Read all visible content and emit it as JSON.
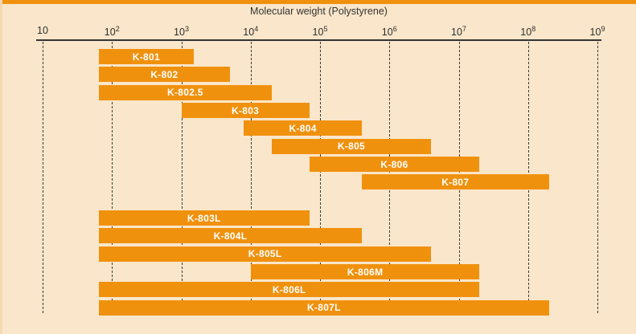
{
  "chart_data": {
    "type": "bar",
    "variant": "horizontal-log-range",
    "title": "Molecular weight (Polystyrene)",
    "x_axis": {
      "scale": "log10",
      "min_exponent": 1,
      "max_exponent": 9,
      "ticks": [
        {
          "base": "10",
          "exp": ""
        },
        {
          "base": "10",
          "exp": "2"
        },
        {
          "base": "10",
          "exp": "3"
        },
        {
          "base": "10",
          "exp": "4"
        },
        {
          "base": "10",
          "exp": "5"
        },
        {
          "base": "10",
          "exp": "6"
        },
        {
          "base": "10",
          "exp": "7"
        },
        {
          "base": "10",
          "exp": "8"
        },
        {
          "base": "10",
          "exp": "9"
        }
      ]
    },
    "grid": "vertical-dashed",
    "legend": "none",
    "bars": [
      {
        "label": "K-801",
        "row": 0,
        "range": [
          65,
          1500
        ]
      },
      {
        "label": "K-802",
        "row": 1,
        "range": [
          65,
          5000
        ]
      },
      {
        "label": "K-802.5",
        "row": 2,
        "range": [
          65,
          20000
        ]
      },
      {
        "label": "K-803",
        "row": 3,
        "range": [
          1000,
          70000
        ]
      },
      {
        "label": "K-804",
        "row": 4,
        "range": [
          8000,
          400000
        ]
      },
      {
        "label": "K-805",
        "row": 5,
        "range": [
          20000,
          4000000
        ]
      },
      {
        "label": "K-806",
        "row": 6,
        "range": [
          70000,
          20000000
        ]
      },
      {
        "label": "K-807",
        "row": 7,
        "range": [
          400000,
          200000000
        ]
      },
      {
        "label": "K-803L",
        "row": 9,
        "range": [
          65,
          70000
        ]
      },
      {
        "label": "K-804L",
        "row": 10,
        "range": [
          65,
          400000
        ]
      },
      {
        "label": "K-805L",
        "row": 11,
        "range": [
          65,
          4000000
        ]
      },
      {
        "label": "K-806M",
        "row": 12,
        "range": [
          10000,
          20000000
        ]
      },
      {
        "label": "K-806L",
        "row": 13,
        "range": [
          65,
          20000000
        ]
      },
      {
        "label": "K-807L",
        "row": 14,
        "range": [
          65,
          200000000
        ]
      }
    ],
    "colors": {
      "bar": "#F0910E",
      "background": "#FAE6CA",
      "axis": "#333333",
      "gridline": "#3A3A3A",
      "bar_label": "#FFFFFF"
    }
  }
}
